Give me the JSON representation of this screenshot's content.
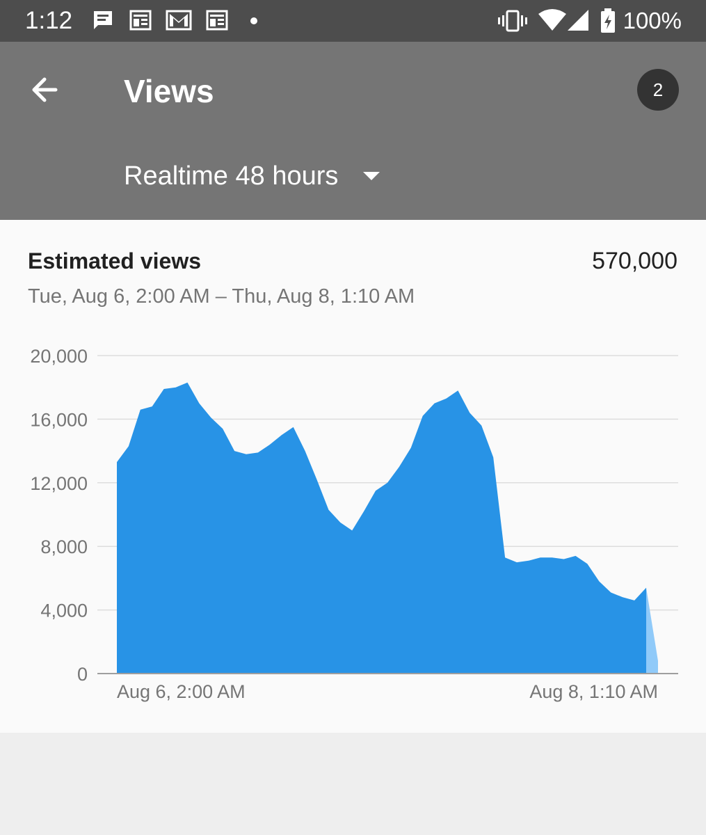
{
  "status_bar": {
    "time": "1:12",
    "notification_icons": [
      "messages-icon",
      "news-icon",
      "gmail-icon",
      "news-icon"
    ],
    "battery": "100%",
    "system_icons": [
      "vibrate-icon",
      "wifi-icon",
      "signal-icon",
      "battery-charging-icon"
    ]
  },
  "app_bar": {
    "title": "Views",
    "account_badge": "2",
    "range_label": "Realtime 48 hours",
    "color": "#757575"
  },
  "card": {
    "metric_title": "Estimated views",
    "metric_value": "570,000",
    "date_range": "Tue, Aug 6, 2:00 AM – Thu, Aug 8, 1:10 AM"
  },
  "chart_data": {
    "type": "area",
    "y_ticks": [
      "20,000",
      "16,000",
      "12,000",
      "8,000",
      "4,000",
      "0"
    ],
    "ylim": [
      0,
      20000
    ],
    "x_labels": [
      "Aug 6, 2:00 AM",
      "Aug 8, 1:10 AM"
    ],
    "grid": true,
    "color": "#2893e6",
    "partial_color": "#90caf9",
    "series": [
      {
        "values": [
          13300,
          14300,
          16600,
          16800,
          17900,
          18000,
          18300,
          17000,
          16100,
          15400,
          14000,
          13800,
          13900,
          14400,
          15000,
          15500,
          14000,
          12200,
          10300,
          9500,
          9000,
          10200,
          11500,
          12000,
          13000,
          14200,
          16200,
          17000,
          17300,
          17800,
          16400,
          15600,
          13600,
          7300,
          7000,
          7100,
          7300,
          7300,
          7200,
          7400,
          6900,
          5800,
          5100,
          4800,
          4600,
          5400
        ],
        "partial_end_value": 800
      }
    ]
  }
}
